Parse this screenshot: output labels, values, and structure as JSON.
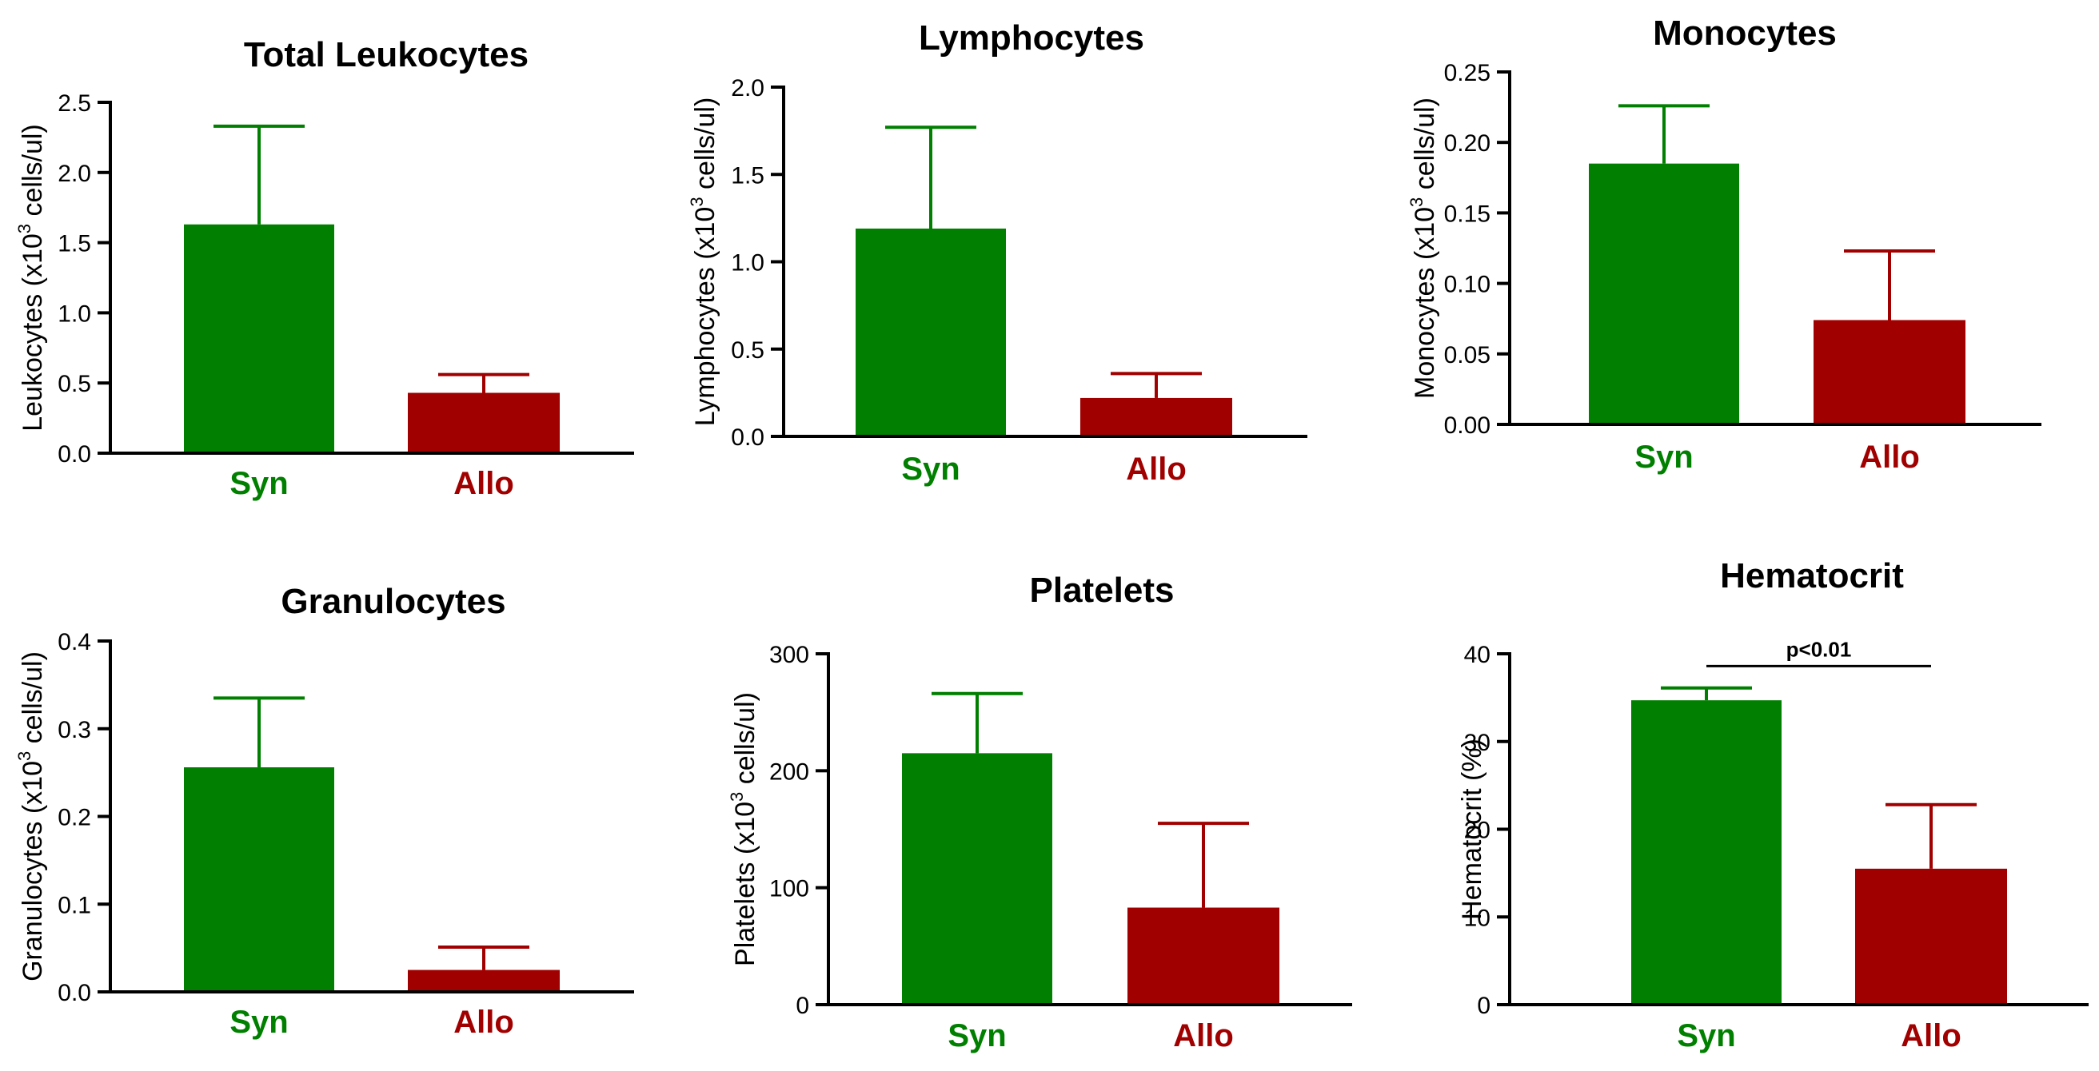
{
  "chart_data": [
    {
      "type": "bar",
      "title": "Total Leukocytes",
      "ylabel": {
        "pre": "Leukocytes (x10",
        "sup": "3",
        "post": " cells/ul)"
      },
      "categories": [
        "Syn",
        "Allo"
      ],
      "values": [
        1.63,
        0.43
      ],
      "errors": [
        0.7,
        0.13
      ],
      "ylim": [
        0,
        2.5
      ],
      "yticks": [
        0,
        0.5,
        1.0,
        1.5,
        2.0,
        2.5
      ],
      "ytick_labels": [
        "0.0",
        "0.5",
        "1.0",
        "1.5",
        "2.0",
        "2.5"
      ],
      "annotation": null
    },
    {
      "type": "bar",
      "title": "Lymphocytes",
      "ylabel": {
        "pre": "Lymphocytes (x10",
        "sup": "3",
        "post": " cells/ul)"
      },
      "categories": [
        "Syn",
        "Allo"
      ],
      "values": [
        1.19,
        0.22
      ],
      "errors": [
        0.58,
        0.14
      ],
      "ylim": [
        0,
        2.0
      ],
      "yticks": [
        0,
        0.5,
        1.0,
        1.5,
        2.0
      ],
      "ytick_labels": [
        "0.0",
        "0.5",
        "1.0",
        "1.5",
        "2.0"
      ],
      "annotation": null
    },
    {
      "type": "bar",
      "title": "Monocytes",
      "ylabel": {
        "pre": "Monocytes (x10",
        "sup": "3",
        "post": " cells/ul)"
      },
      "categories": [
        "Syn",
        "Allo"
      ],
      "values": [
        0.185,
        0.074
      ],
      "errors": [
        0.041,
        0.049
      ],
      "ylim": [
        0,
        0.25
      ],
      "yticks": [
        0,
        0.05,
        0.1,
        0.15,
        0.2,
        0.25
      ],
      "ytick_labels": [
        "0.00",
        "0.05",
        "0.10",
        "0.15",
        "0.20",
        "0.25"
      ],
      "annotation": null
    },
    {
      "type": "bar",
      "title": "Granulocytes",
      "ylabel": {
        "pre": "Granulocytes (x10",
        "sup": "3",
        "post": " cells/ul)"
      },
      "categories": [
        "Syn",
        "Allo"
      ],
      "values": [
        0.256,
        0.025
      ],
      "errors": [
        0.079,
        0.026
      ],
      "ylim": [
        0,
        0.4
      ],
      "yticks": [
        0,
        0.1,
        0.2,
        0.3,
        0.4
      ],
      "ytick_labels": [
        "0.0",
        "0.1",
        "0.2",
        "0.3",
        "0.4"
      ],
      "annotation": null
    },
    {
      "type": "bar",
      "title": "Platelets",
      "ylabel": {
        "pre": "Platelets (x10",
        "sup": "3",
        "post": " cells/ul)"
      },
      "categories": [
        "Syn",
        "Allo"
      ],
      "values": [
        215,
        83
      ],
      "errors": [
        51,
        72
      ],
      "ylim": [
        0,
        300
      ],
      "yticks": [
        0,
        100,
        200,
        300
      ],
      "ytick_labels": [
        "0",
        "100",
        "200",
        "300"
      ],
      "annotation": null
    },
    {
      "type": "bar",
      "title": "Hematocrit",
      "ylabel": {
        "pre": "Hematocrit (%)",
        "sup": "",
        "post": ""
      },
      "categories": [
        "Syn",
        "Allo"
      ],
      "values": [
        34.7,
        15.5
      ],
      "errors": [
        1.4,
        7.3
      ],
      "ylim": [
        0,
        40
      ],
      "yticks": [
        0,
        10,
        20,
        30,
        40
      ],
      "ytick_labels": [
        "0",
        "10",
        "20",
        "30",
        "40"
      ],
      "annotation": {
        "text": "p<0.01",
        "y": 38.6
      }
    }
  ],
  "colors": {
    "Syn": "#007f00",
    "Allo": "#a10000",
    "axis": "#000000"
  }
}
